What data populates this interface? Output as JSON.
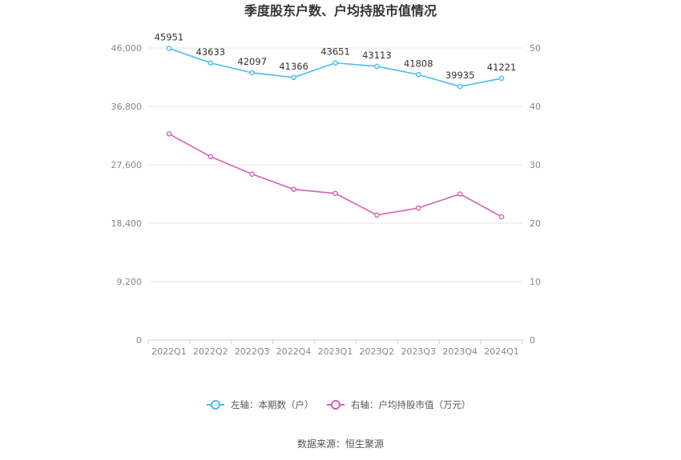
{
  "chart_data": {
    "type": "line",
    "title": "季度股东户数、户均持股市值情况",
    "categories": [
      "2022Q1",
      "2022Q2",
      "2022Q3",
      "2022Q4",
      "2023Q1",
      "2023Q2",
      "2023Q3",
      "2023Q4",
      "2024Q1"
    ],
    "series": [
      {
        "name": "左轴：本期数（户）",
        "axis": "left",
        "color": "#4bbcec",
        "values": [
          45951,
          43633,
          42097,
          41366,
          43651,
          43113,
          41808,
          39935,
          41221
        ],
        "data_labels": [
          "45951",
          "43633",
          "42097",
          "41366",
          "43651",
          "43113",
          "41808",
          "39935",
          "41221"
        ]
      },
      {
        "name": "右轴：户均持股市值（万元）",
        "axis": "right",
        "color": "#d462b0",
        "values": [
          35.3,
          31.4,
          28.4,
          25.8,
          25.1,
          21.4,
          22.6,
          25.0,
          21.1
        ]
      }
    ],
    "y_left": {
      "ylim": [
        0,
        46000
      ],
      "ticks": [
        "0",
        "9,200",
        "18,400",
        "27,600",
        "36,800",
        "46,000"
      ]
    },
    "y_right": {
      "ylim": [
        0,
        50
      ],
      "ticks": [
        "0",
        "10",
        "20",
        "30",
        "40",
        "50"
      ]
    },
    "grid": true,
    "legend_position": "bottom"
  },
  "footer": {
    "source": "数据来源：恒生聚源"
  }
}
